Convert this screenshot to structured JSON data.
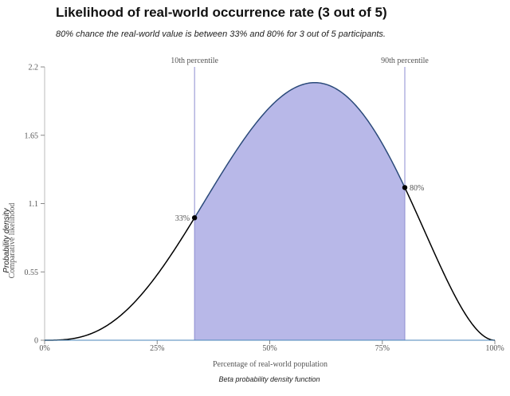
{
  "chart_data": {
    "type": "area",
    "title": "Likelihood of real-world occurrence rate (3 out of 5)",
    "subtitle": "80% chance the real-world value is between 33% and 80% for 3 out of 5 participants.",
    "xlabel": "Percentage of real-world population",
    "ylabel": "Probability density",
    "ylabel_secondary": "Comparative likelihood",
    "footer": "Beta probability density function",
    "distribution": {
      "name": "beta",
      "alpha": 4,
      "beta": 3
    },
    "xlim": [
      0,
      1
    ],
    "ylim": [
      0,
      2.2
    ],
    "x_ticks": [
      0,
      0.25,
      0.5,
      0.75,
      1
    ],
    "x_tick_labels": [
      "0%",
      "25%",
      "50%",
      "75%",
      "100%"
    ],
    "y_ticks": [
      0,
      0.55,
      1.1,
      1.65,
      2.2
    ],
    "y_tick_labels": [
      "0",
      "0.55",
      "1.1",
      "1.65",
      "2.2"
    ],
    "shaded_interval": [
      0.333,
      0.8
    ],
    "percentile_lines": [
      {
        "label": "10th percentile",
        "x": 0.333
      },
      {
        "label": "90th percentile",
        "x": 0.8
      }
    ],
    "points": [
      {
        "label": "33%",
        "x": 0.333,
        "y": 0.99
      },
      {
        "label": "80%",
        "x": 0.8,
        "y": 1.23
      }
    ],
    "colors": {
      "fill": "#b8b8e8",
      "curve": "#000000",
      "shaded_curve": "#2b4a7a",
      "percentile_line": "#8e8ed0",
      "axis": "#4a86b8"
    },
    "grid": false
  }
}
